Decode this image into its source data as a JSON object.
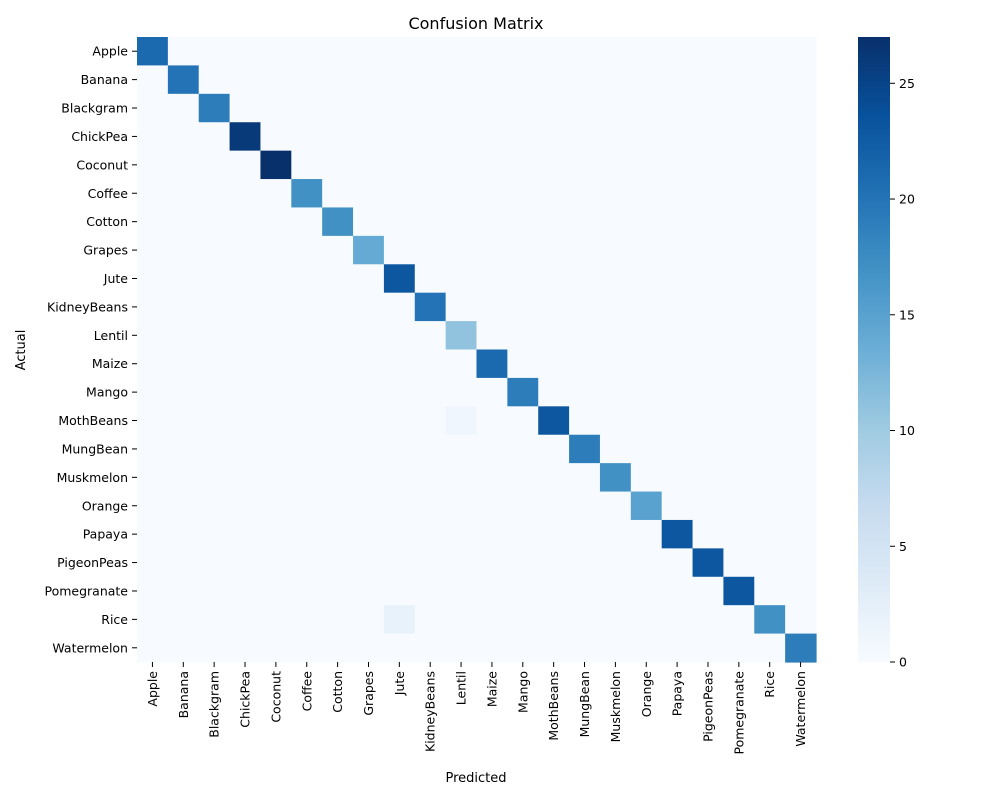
{
  "chart_data": {
    "type": "heatmap",
    "title": "Confusion Matrix",
    "xlabel": "Predicted",
    "ylabel": "Actual",
    "row_labels": [
      "Apple",
      "Banana",
      "Blackgram",
      "ChickPea",
      "Coconut",
      "Coffee",
      "Cotton",
      "Grapes",
      "Jute",
      "KidneyBeans",
      "Lentil",
      "Maize",
      "Mango",
      "MothBeans",
      "MungBean",
      "Muskmelon",
      "Orange",
      "Papaya",
      "PigeonPeas",
      "Pomegranate",
      "Rice",
      "Watermelon"
    ],
    "col_labels": [
      "Apple",
      "Banana",
      "Blackgram",
      "ChickPea",
      "Coconut",
      "Coffee",
      "Cotton",
      "Grapes",
      "Jute",
      "KidneyBeans",
      "Lentil",
      "Maize",
      "Mango",
      "MothBeans",
      "MungBean",
      "Muskmelon",
      "Orange",
      "Papaya",
      "PigeonPeas",
      "Pomegranate",
      "Rice",
      "Watermelon"
    ],
    "diagonal": [
      21,
      20,
      19,
      26,
      27,
      17,
      17,
      14,
      23,
      20,
      11,
      21,
      19,
      23,
      19,
      17,
      15,
      23,
      23,
      23,
      17,
      19
    ],
    "off_diagonal": [
      {
        "row": "MothBeans",
        "col": "Lentil",
        "value": 1
      },
      {
        "row": "Rice",
        "col": "Jute",
        "value": 2
      }
    ],
    "colorbar": {
      "cmap": "Blues",
      "vmin": 0,
      "vmax": 27,
      "ticks": [
        0,
        5,
        10,
        15,
        20,
        25
      ]
    }
  }
}
